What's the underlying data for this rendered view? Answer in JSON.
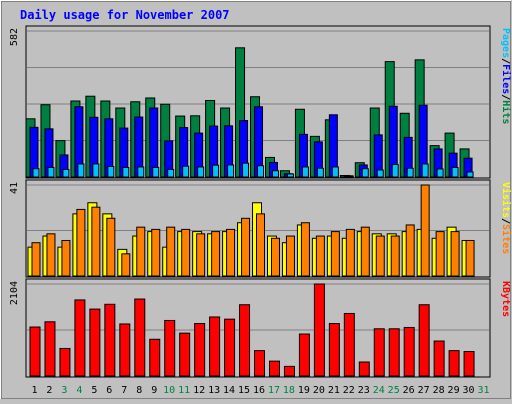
{
  "chart_data": {
    "type": "bar",
    "title": "Daily usage for November 2007",
    "categories": [
      "1",
      "2",
      "3",
      "4",
      "5",
      "6",
      "7",
      "8",
      "9",
      "10",
      "11",
      "12",
      "13",
      "14",
      "15",
      "16",
      "17",
      "18",
      "19",
      "20",
      "21",
      "22",
      "23",
      "24",
      "25",
      "26",
      "27",
      "28",
      "29",
      "30",
      "31"
    ],
    "weekend_days": [
      "3",
      "4",
      "10",
      "11",
      "17",
      "18",
      "24",
      "25",
      "31"
    ],
    "panels": [
      {
        "id": "pages-files-hits",
        "ymax_label": "582",
        "ylim": [
          0,
          582
        ],
        "legend": [
          "Pages",
          "Files",
          "Hits"
        ],
        "series": [
          {
            "name": "Hits",
            "color": "#008040",
            "values": [
              232,
              288,
              145,
              303,
              322,
              303,
              275,
              300,
              315,
              290,
              243,
              244,
              305,
              275,
              515,
              320,
              78,
              25,
              270,
              162,
              228,
              6,
              57,
              275,
              460,
              254,
              467,
              125,
              175,
              112,
              0
            ]
          },
          {
            "name": "Files",
            "color": "#0000ff",
            "values": [
              198,
              192,
              88,
              280,
              238,
              232,
              195,
              239,
              275,
              144,
              197,
              175,
              203,
              204,
              225,
              280,
              58,
              13,
              170,
              140,
              248,
              5,
              48,
              168,
              282,
              158,
              286,
              112,
              95,
              75,
              0
            ]
          },
          {
            "name": "Pages",
            "color": "#00c0ff",
            "values": [
              33,
              38,
              30,
              52,
              52,
              42,
              38,
              40,
              38,
              30,
              43,
              40,
              47,
              48,
              55,
              45,
              25,
              12,
              40,
              35,
              40,
              3,
              33,
              28,
              50,
              35,
              52,
              32,
              38,
              20,
              0
            ]
          }
        ]
      },
      {
        "id": "sites-visits",
        "ymax_label": "41",
        "ylim": [
          0,
          41
        ],
        "legend": [
          "Visits",
          "Sites"
        ],
        "series": [
          {
            "name": "Visits",
            "color": "#ffff00",
            "values": [
              13,
              18,
              13,
              28,
              33,
              28,
              12,
              18,
              20,
              13,
              20,
              20,
              19,
              20,
              24,
              33,
              18,
              15,
              23,
              17,
              18,
              17,
              20,
              19,
              19,
              20,
              21,
              17,
              22,
              16,
              0
            ]
          },
          {
            "name": "Sites",
            "color": "#ff8000",
            "values": [
              15,
              19,
              16,
              30,
              31,
              26,
              10,
              22,
              21,
              22,
              21,
              19,
              20,
              21,
              26,
              28,
              17,
              18,
              24,
              18,
              20,
              21,
              22,
              18,
              18,
              23,
              41,
              20,
              20,
              16,
              0
            ]
          }
        ]
      },
      {
        "id": "kbytes",
        "ymax_label": "2104",
        "ylim": [
          0,
          2104
        ],
        "legend": [
          "KBytes"
        ],
        "series": [
          {
            "name": "KBytes",
            "color": "#ff0000",
            "values": [
              1120,
              1240,
              630,
              1740,
              1530,
              1640,
              1190,
              1760,
              840,
              1270,
              980,
              1200,
              1350,
              1300,
              1630,
              580,
              340,
              220,
              960,
              2104,
              1200,
              1430,
              320,
              1080,
              1080,
              1110,
              1630,
              800,
              580,
              560,
              0
            ]
          }
        ]
      }
    ]
  }
}
